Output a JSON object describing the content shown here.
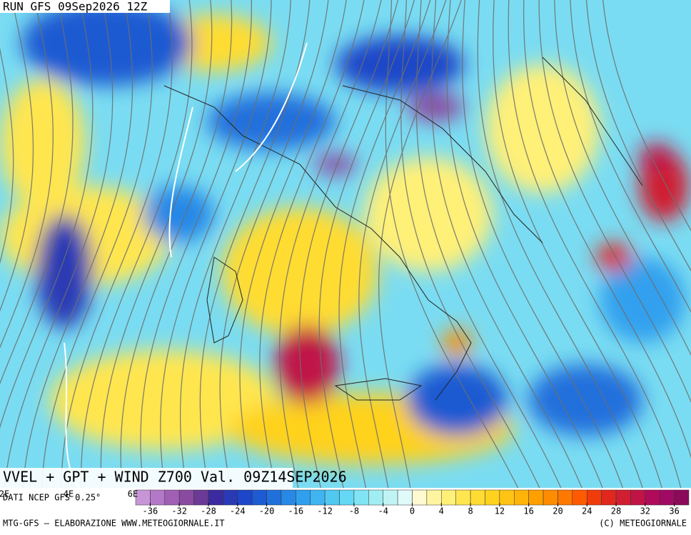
{
  "header": {
    "run": "RUN GFS 09Sep2026 12Z"
  },
  "map": {
    "title": "VVEL + GPT + WIND Z700 Val. 09Z14SEP2026",
    "lon_labels": [
      "2E",
      "4E",
      "6E"
    ],
    "source": "DATI NCEP GFS 0.25°"
  },
  "colorbar": {
    "min": -38,
    "max": 38,
    "ticks": [
      -36,
      -32,
      -28,
      -24,
      -20,
      -16,
      -12,
      -8,
      -4,
      0,
      4,
      8,
      12,
      16,
      20,
      24,
      28,
      32,
      36
    ],
    "colors": [
      "#c896d6",
      "#b478c8",
      "#a05fb4",
      "#8a4aa0",
      "#6a3a96",
      "#3c2aa0",
      "#2a3ab4",
      "#1e46c8",
      "#1e5ad2",
      "#2070dc",
      "#2888e6",
      "#30a0ee",
      "#40b4f0",
      "#50c8f0",
      "#64d8f4",
      "#80e4f4",
      "#a0eef4",
      "#c0f4f4",
      "#e0fafa",
      "#fffad0",
      "#fff5a0",
      "#fff078",
      "#ffe650",
      "#ffdc32",
      "#ffd21e",
      "#ffc314",
      "#ffb40a",
      "#ffa000",
      "#ff8c00",
      "#ff7800",
      "#ff5a00",
      "#f03c0a",
      "#e0281e",
      "#d01e32",
      "#c01446",
      "#b00a5a",
      "#a00a64",
      "#8c0a5a"
    ]
  },
  "footer": {
    "left": "MTG-GFS — ELABORAZIONE WWW.METEOGIORNALE.IT",
    "right": "(C) METEOGIORNALE"
  }
}
